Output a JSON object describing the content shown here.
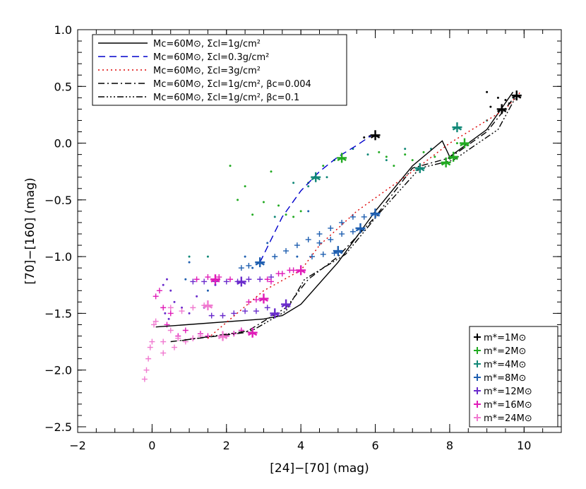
{
  "chart_data": {
    "type": "scatter",
    "xlabel": "[24]−[70] (mag)",
    "ylabel": "[70]−[160] (mag)",
    "xlim": [
      -2,
      11
    ],
    "ylim": [
      -2.55,
      1.0
    ],
    "x_ticks": [
      -2,
      0,
      2,
      4,
      6,
      8,
      10
    ],
    "y_ticks": [
      1.0,
      0.5,
      0.0,
      -0.5,
      -1.0,
      -1.5,
      -2.0,
      -2.5
    ],
    "x_tick_labels": [
      "−2",
      "0",
      "2",
      "4",
      "6",
      "8",
      "10"
    ],
    "y_tick_labels": [
      "1.0",
      "0.5",
      "0.0",
      "−0.5",
      "−1.0",
      "−1.5",
      "−2.0",
      "−2.5"
    ],
    "grid": false,
    "legend_tracks": {
      "placement": "top-left",
      "entries": [
        {
          "label": "Mc=60M⊙, Σcl=1g/cm²",
          "color": "#000000",
          "style": "solid"
        },
        {
          "label": "Mc=60M⊙, Σcl=0.3g/cm²",
          "color": "#0000cc",
          "style": "dashed"
        },
        {
          "label": "Mc=60M⊙, Σcl=3g/cm²",
          "color": "#dd0000",
          "style": "dotted"
        },
        {
          "label": "Mc=60M⊙, Σcl=1g/cm², βc=0.004",
          "color": "#000000",
          "style": "dashdot"
        },
        {
          "label": "Mc=60M⊙, Σcl=1g/cm², βc=0.1",
          "color": "#000000",
          "style": "dashdotdotdot"
        }
      ]
    },
    "legend_masses": {
      "placement": "bottom-right",
      "entries": [
        {
          "label": "m*=1M⊙",
          "color": "#000000"
        },
        {
          "label": "m*=2M⊙",
          "color": "#22aa22"
        },
        {
          "label": "m*=4M⊙",
          "color": "#118877"
        },
        {
          "label": "m*=8M⊙",
          "color": "#1f5fb0"
        },
        {
          "label": "m*=12M⊙",
          "color": "#6a2ccc"
        },
        {
          "label": "m*=16M⊙",
          "color": "#e01cb8"
        },
        {
          "label": "m*=24M⊙",
          "color": "#f07ad0"
        }
      ]
    },
    "tracks": [
      {
        "style": "solid",
        "color": "#000000",
        "x": [
          0.1,
          3.0,
          3.5,
          4.0,
          5.0,
          6.0,
          7.0,
          7.8,
          8.0,
          9.0,
          9.7
        ],
        "y": [
          -1.62,
          -1.55,
          -1.52,
          -1.42,
          -1.05,
          -0.6,
          -0.2,
          0.02,
          -0.12,
          0.12,
          0.45
        ]
      },
      {
        "style": "dashed",
        "color": "#0000cc",
        "x": [
          2.9,
          3.5,
          4.0,
          4.5,
          5.0,
          5.5,
          5.9
        ],
        "y": [
          -1.05,
          -0.65,
          -0.42,
          -0.25,
          -0.12,
          -0.02,
          0.07
        ]
      },
      {
        "style": "dotted",
        "color": "#dd0000",
        "x": [
          1.5,
          3.0,
          4.0,
          4.5,
          5.5,
          7.0,
          8.0,
          9.5,
          9.9
        ],
        "y": [
          -1.72,
          -1.3,
          -1.12,
          -0.9,
          -0.6,
          -0.25,
          0.0,
          0.3,
          0.45
        ]
      },
      {
        "style": "dashdot",
        "color": "#000000",
        "x": [
          0.5,
          2.5,
          3.6,
          4.2,
          5.0,
          6.0,
          7.0,
          8.0,
          9.0,
          9.8
        ],
        "y": [
          -1.75,
          -1.67,
          -1.45,
          -1.2,
          -1.0,
          -0.65,
          -0.22,
          -0.13,
          0.1,
          0.43
        ]
      },
      {
        "style": "dashdotdotdot",
        "color": "#000000",
        "x": [
          0.8,
          2.7,
          3.6,
          4.1,
          5.2,
          6.1,
          7.2,
          8.1,
          9.3,
          9.8
        ],
        "y": [
          -1.74,
          -1.65,
          -1.48,
          -1.2,
          -0.98,
          -0.62,
          -0.22,
          -0.15,
          0.12,
          0.42
        ]
      }
    ],
    "stars": [
      {
        "x": 6.0,
        "y": 0.07,
        "color": "#000000"
      },
      {
        "x": 9.8,
        "y": 0.42,
        "color": "#000000"
      },
      {
        "x": 9.4,
        "y": 0.3,
        "color": "#000000"
      },
      {
        "x": 5.1,
        "y": -0.13,
        "color": "#22aa22"
      },
      {
        "x": 7.9,
        "y": -0.17,
        "color": "#22aa22"
      },
      {
        "x": 8.1,
        "y": -0.12,
        "color": "#22aa22"
      },
      {
        "x": 8.4,
        "y": 0.0,
        "color": "#22aa22"
      },
      {
        "x": 4.4,
        "y": -0.3,
        "color": "#118877"
      },
      {
        "x": 7.2,
        "y": -0.22,
        "color": "#118877"
      },
      {
        "x": 8.2,
        "y": 0.14,
        "color": "#118877"
      },
      {
        "x": 6.0,
        "y": -0.62,
        "color": "#1f5fb0"
      },
      {
        "x": 5.6,
        "y": -0.75,
        "color": "#1f5fb0"
      },
      {
        "x": 5.0,
        "y": -0.95,
        "color": "#1f5fb0"
      },
      {
        "x": 2.9,
        "y": -1.05,
        "color": "#1f5fb0"
      },
      {
        "x": 3.6,
        "y": -1.42,
        "color": "#6a2ccc"
      },
      {
        "x": 3.3,
        "y": -1.5,
        "color": "#6a2ccc"
      },
      {
        "x": 2.4,
        "y": -1.22,
        "color": "#6a2ccc"
      },
      {
        "x": 4.0,
        "y": -1.12,
        "color": "#e01cb8"
      },
      {
        "x": 3.0,
        "y": -1.37,
        "color": "#e01cb8"
      },
      {
        "x": 2.7,
        "y": -1.67,
        "color": "#e01cb8"
      },
      {
        "x": 1.7,
        "y": -1.2,
        "color": "#e01cb8"
      },
      {
        "x": 1.9,
        "y": -1.7,
        "color": "#f07ad0"
      },
      {
        "x": 1.5,
        "y": -1.43,
        "color": "#f07ad0"
      }
    ],
    "scatter_points": [
      {
        "color": "#000000",
        "marker": "dot",
        "x": [
          5.7,
          5.85,
          9.0,
          9.1,
          9.3,
          9.5,
          9.6
        ],
        "y": [
          0.05,
          0.06,
          0.45,
          0.32,
          0.4,
          0.38,
          0.35
        ]
      },
      {
        "color": "#22aa22",
        "marker": "dot",
        "x": [
          2.1,
          2.3,
          2.5,
          2.7,
          3.0,
          3.2,
          3.4,
          3.6,
          3.8,
          4.0,
          4.2,
          4.6,
          4.9,
          6.1,
          6.3,
          6.5,
          6.8,
          7.0,
          7.3,
          7.6,
          7.8,
          8.2
        ],
        "y": [
          -0.2,
          -0.5,
          -0.38,
          -0.63,
          -0.52,
          -0.25,
          -0.55,
          -0.63,
          -0.65,
          -0.6,
          -0.35,
          -0.2,
          -0.15,
          -0.08,
          -0.12,
          -0.2,
          -0.1,
          -0.15,
          -0.08,
          -0.12,
          -0.18,
          0.0
        ]
      },
      {
        "color": "#118877",
        "marker": "dot",
        "x": [
          1.0,
          1.5,
          3.3,
          3.8,
          4.2,
          4.7,
          5.4,
          5.8,
          6.3,
          6.8,
          7.5,
          9.0
        ],
        "y": [
          -1.0,
          -1.0,
          -0.65,
          -0.35,
          -0.38,
          -0.3,
          -0.05,
          -0.1,
          -0.15,
          -0.05,
          -0.05,
          0.2
        ]
      },
      {
        "color": "#1f5fb0",
        "marker": "dot",
        "x": [
          0.9,
          1.0,
          1.5,
          1.8,
          2.5,
          2.7,
          3.1,
          3.9,
          4.2
        ],
        "y": [
          -1.2,
          -1.05,
          -1.3,
          -1.2,
          -1.0,
          -1.1,
          -0.88,
          -1.0,
          -0.6
        ]
      },
      {
        "color": "#1f5fb0",
        "marker": "plus",
        "x": [
          3.3,
          3.6,
          3.9,
          4.2,
          4.5,
          4.8,
          5.1,
          5.4,
          5.7,
          4.5,
          4.8,
          5.1,
          5.4,
          2.4,
          2.6,
          4.3,
          4.6,
          4.9
        ],
        "y": [
          -1.0,
          -0.95,
          -0.9,
          -0.85,
          -0.8,
          -0.75,
          -0.7,
          -0.65,
          -0.65,
          -0.88,
          -0.85,
          -0.8,
          -0.78,
          -1.1,
          -1.08,
          -1.0,
          -0.98,
          -0.97
        ]
      },
      {
        "color": "#6a2ccc",
        "marker": "dot",
        "x": [
          0.3,
          0.4,
          0.5,
          0.6,
          0.8,
          1.0,
          1.2,
          1.4,
          1.7,
          0.35,
          0.45
        ],
        "y": [
          -1.25,
          -1.2,
          -1.3,
          -1.4,
          -1.45,
          -1.5,
          -1.35,
          -1.45,
          -1.25,
          -1.5,
          -1.55
        ]
      },
      {
        "color": "#6a2ccc",
        "marker": "plus",
        "x": [
          1.1,
          1.4,
          1.7,
          2.0,
          2.3,
          2.6,
          2.9,
          3.2,
          1.6,
          1.9,
          2.2,
          2.5,
          2.8,
          3.1
        ],
        "y": [
          -1.22,
          -1.22,
          -1.22,
          -1.22,
          -1.22,
          -1.2,
          -1.2,
          -1.18,
          -1.52,
          -1.52,
          -1.5,
          -1.48,
          -1.48,
          -1.45
        ]
      },
      {
        "color": "#e01cb8",
        "marker": "plus",
        "x": [
          0.1,
          0.2,
          0.3,
          0.4,
          0.5,
          0.7,
          0.9,
          1.1,
          1.3,
          1.5,
          2.0,
          2.2,
          2.4,
          2.6,
          2.8,
          3.1,
          3.4,
          3.7,
          1.2,
          1.5,
          1.8,
          2.1,
          3.2,
          3.5,
          3.8
        ],
        "y": [
          -1.35,
          -1.3,
          -1.45,
          -1.6,
          -1.5,
          -1.7,
          -1.65,
          -1.72,
          -1.68,
          -1.7,
          -1.7,
          -1.68,
          -1.65,
          -1.4,
          -1.38,
          -1.2,
          -1.15,
          -1.12,
          -1.2,
          -1.18,
          -1.18,
          -1.2,
          -1.22,
          -1.15,
          -1.12
        ]
      },
      {
        "color": "#f07ad0",
        "marker": "plus",
        "x": [
          -0.2,
          -0.15,
          -0.1,
          -0.05,
          0.0,
          0.05,
          0.1,
          0.3,
          0.5,
          0.7,
          0.9,
          1.1,
          1.3,
          0.5,
          0.8,
          1.1,
          1.4,
          0.3,
          0.6
        ],
        "y": [
          -2.08,
          -2.0,
          -1.9,
          -1.8,
          -1.75,
          -1.6,
          -1.57,
          -1.75,
          -1.65,
          -1.72,
          -1.75,
          -1.72,
          -1.7,
          -1.45,
          -1.48,
          -1.45,
          -1.43,
          -1.85,
          -1.8
        ]
      }
    ]
  }
}
